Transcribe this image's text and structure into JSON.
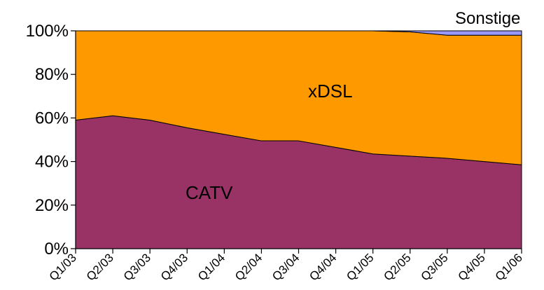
{
  "chart_data": {
    "type": "area",
    "stacked": true,
    "percent_stacked": true,
    "categories": [
      "Q1/03",
      "Q2/03",
      "Q3/03",
      "Q4/03",
      "Q1/04",
      "Q2/04",
      "Q3/04",
      "Q4/04",
      "Q1/05",
      "Q2/05",
      "Q3/05",
      "Q4/05",
      "Q1/06"
    ],
    "series": [
      {
        "name": "CATV",
        "color": "#993366",
        "values": [
          59,
          61,
          59,
          55.5,
          52.5,
          49.5,
          49.5,
          46.5,
          43.5,
          42.5,
          41.5,
          40,
          38.5
        ]
      },
      {
        "name": "xDSL",
        "color": "#FF9900",
        "values": [
          41,
          39,
          41,
          44.5,
          47.5,
          50.5,
          50.5,
          53.5,
          56.5,
          57,
          56.5,
          58,
          59.5
        ]
      },
      {
        "name": "Sonstige",
        "color": "#9999FF",
        "values": [
          0,
          0,
          0,
          0,
          0,
          0,
          0,
          0,
          0,
          0.5,
          2,
          2,
          2
        ]
      }
    ],
    "ylim": [
      0,
      100
    ],
    "y_ticks": [
      "0%",
      "20%",
      "40%",
      "60%",
      "80%",
      "100%"
    ],
    "grid": false,
    "legend": "none (labels placed on areas)"
  }
}
